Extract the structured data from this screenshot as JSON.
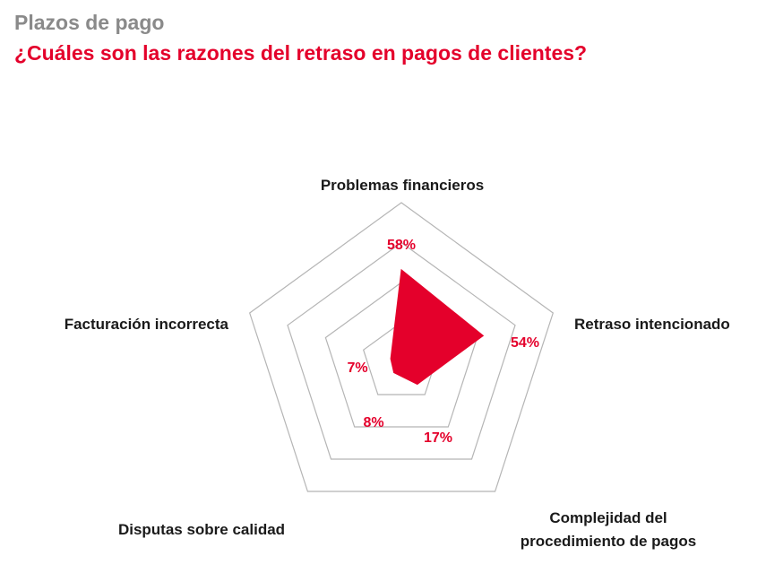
{
  "header": {
    "subtitle": "Plazos de pago",
    "title": "¿Cuáles son las razones del retraso en pagos de clientes?"
  },
  "colors": {
    "accent": "#e4002b",
    "grid": "#b5b5b5",
    "subtitle": "#8a8a8a",
    "text": "#1a1a1a"
  },
  "chart_data": {
    "type": "radar",
    "title": "¿Cuáles son las razones del retraso en pagos de clientes?",
    "categories": [
      "Problemas financieros",
      "Retraso intencionado",
      "Complejidad del procedimiento de pagos",
      "Disputas sobre calidad",
      "Facturación incorrecta"
    ],
    "category_lines": [
      [
        "Problemas financieros"
      ],
      [
        "Retraso intencionado"
      ],
      [
        "Complejidad del",
        "procedimiento de pagos"
      ],
      [
        "Disputas sobre calidad"
      ],
      [
        "Facturación incorrecta"
      ]
    ],
    "values": [
      58,
      54,
      17,
      8,
      7
    ],
    "value_labels": [
      "58%",
      "54%",
      "17%",
      "8%",
      "7%"
    ],
    "unit": "%",
    "rmax": 100,
    "grid_levels": [
      25,
      50,
      75,
      100
    ],
    "grid": true,
    "legend": "none"
  }
}
